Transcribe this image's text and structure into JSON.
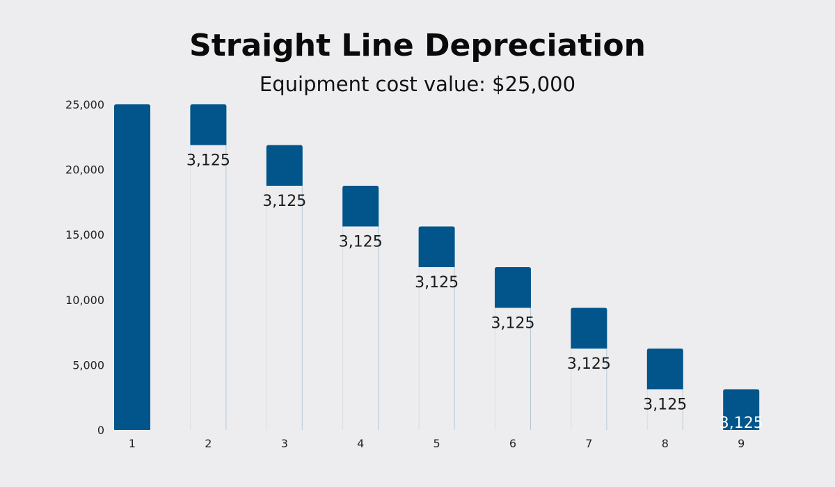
{
  "chart_data": {
    "type": "bar",
    "subtype": "waterfall",
    "title": "Straight Line Depreciation",
    "subtitle": "Equipment cost value: $25,000",
    "xlabel": "",
    "ylabel": "",
    "categories": [
      "1",
      "2",
      "3",
      "4",
      "5",
      "6",
      "7",
      "8",
      "9"
    ],
    "series": [
      {
        "name": "Base (remaining value)",
        "visible": false,
        "values": [
          0,
          21875,
          18750,
          15625,
          12500,
          9375,
          6250,
          3125,
          0
        ]
      },
      {
        "name": "Value",
        "visible": true,
        "values": [
          25000,
          3125,
          3125,
          3125,
          3125,
          3125,
          3125,
          3125,
          3125
        ]
      }
    ],
    "data_labels": [
      "",
      "3,125",
      "3,125",
      "3,125",
      "3,125",
      "3,125",
      "3,125",
      "3,125",
      "3,125"
    ],
    "yticks": [
      0,
      5000,
      10000,
      15000,
      20000,
      25000
    ],
    "ytick_labels": [
      "0",
      "5,000",
      "10,000",
      "15,000",
      "20,000",
      "25,000"
    ],
    "ylim": [
      0,
      25000
    ],
    "grid": false,
    "legend": "none",
    "colors": {
      "bar": "#02558b",
      "background": "#ededef",
      "label_on_bar": "#ffffff",
      "label_off_bar": "#1a1a1a"
    }
  }
}
